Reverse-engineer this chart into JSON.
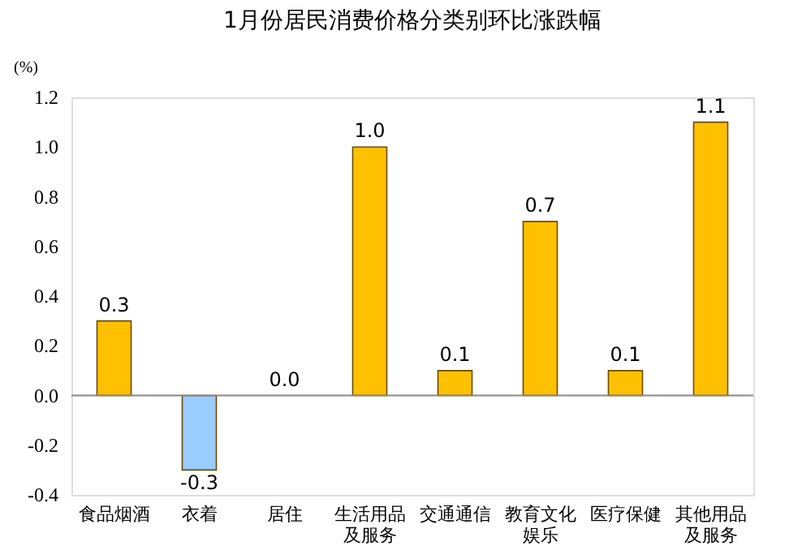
{
  "chart_data": {
    "type": "bar",
    "title": "1月份居民消费价格分类别环比涨跌幅",
    "ylabel": "(%)",
    "categories": [
      "食品烟酒",
      "衣着",
      "居住",
      "生活用品及服务",
      "交通通信",
      "教育文化娱乐",
      "医疗保健",
      "其他用品及服务"
    ],
    "values": [
      0.3,
      -0.3,
      0.0,
      1.0,
      0.1,
      0.7,
      0.1,
      1.1
    ],
    "value_labels": [
      "0.3",
      "-0.3",
      "0.0",
      "1.0",
      "0.1",
      "0.7",
      "0.1",
      "1.1"
    ],
    "colors": [
      "#ffc000",
      "#99ccff",
      "#ffc000",
      "#ffc000",
      "#ffc000",
      "#ffc000",
      "#ffc000",
      "#ffc000"
    ],
    "ylim": [
      -0.4,
      1.2
    ],
    "yticks": [
      -0.4,
      -0.2,
      {
        "value": 0,
        "label": "0.0"
      },
      0.2,
      0.4,
      0.6,
      0.8,
      {
        "value": 1,
        "label": "1.0"
      },
      1.2
    ],
    "ref_lines": [
      {
        "axis": "y",
        "value": 0,
        "color": "#888888"
      }
    ]
  }
}
